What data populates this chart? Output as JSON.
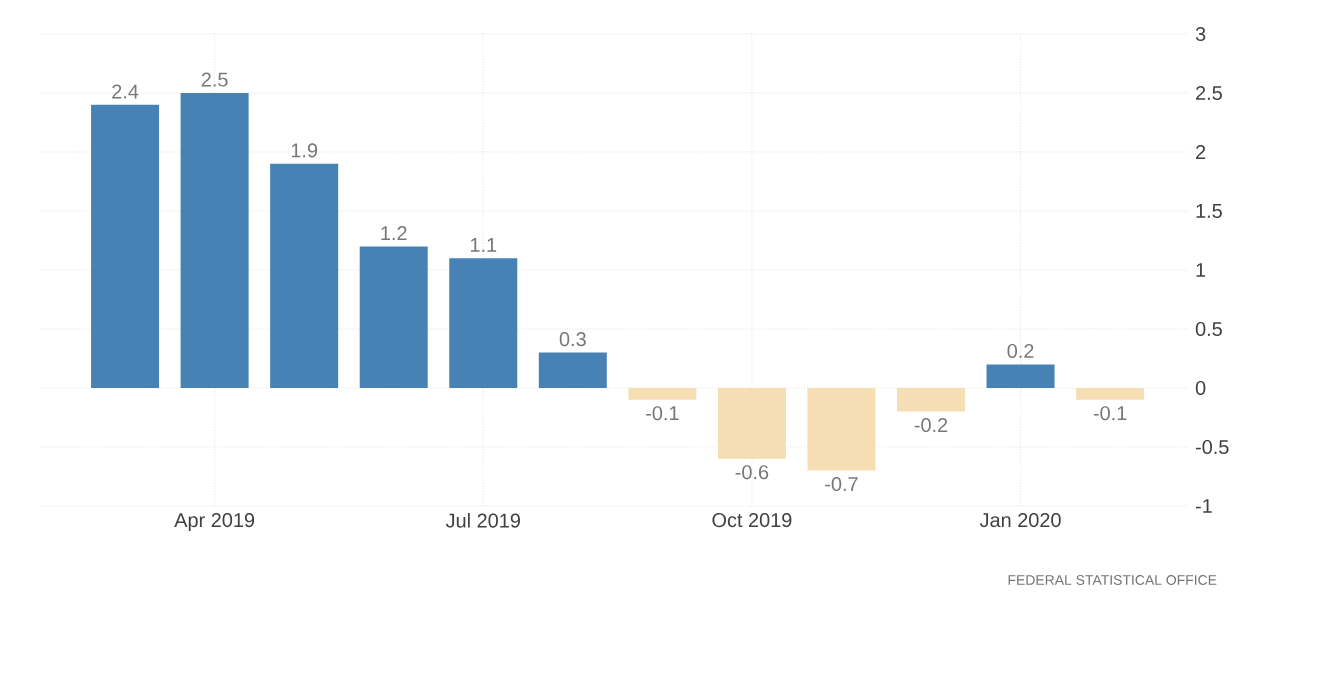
{
  "chart_data": {
    "type": "bar",
    "categories": [
      null,
      "Apr 2019",
      null,
      null,
      "Jul 2019",
      null,
      null,
      "Oct 2019",
      null,
      null,
      "Jan 2020",
      null
    ],
    "values": [
      2.4,
      2.5,
      1.9,
      1.2,
      1.1,
      0.3,
      -0.1,
      -0.6,
      -0.7,
      -0.2,
      0.2,
      -0.1
    ],
    "colors": [
      "#4682b4",
      "#4682b4",
      "#4682b4",
      "#4682b4",
      "#4682b4",
      "#4682b4",
      "#f5deb3",
      "#f5deb3",
      "#f5deb3",
      "#f5deb3",
      "#4682b4",
      "#f5deb3"
    ],
    "ylim": [
      -1,
      3
    ],
    "yticks": [
      -1,
      -0.5,
      0,
      0.5,
      1,
      1.5,
      2,
      2.5,
      3
    ],
    "grid": true,
    "data_labels": true,
    "annotations": [
      "FEDERAL STATISTICAL OFFICE"
    ]
  }
}
